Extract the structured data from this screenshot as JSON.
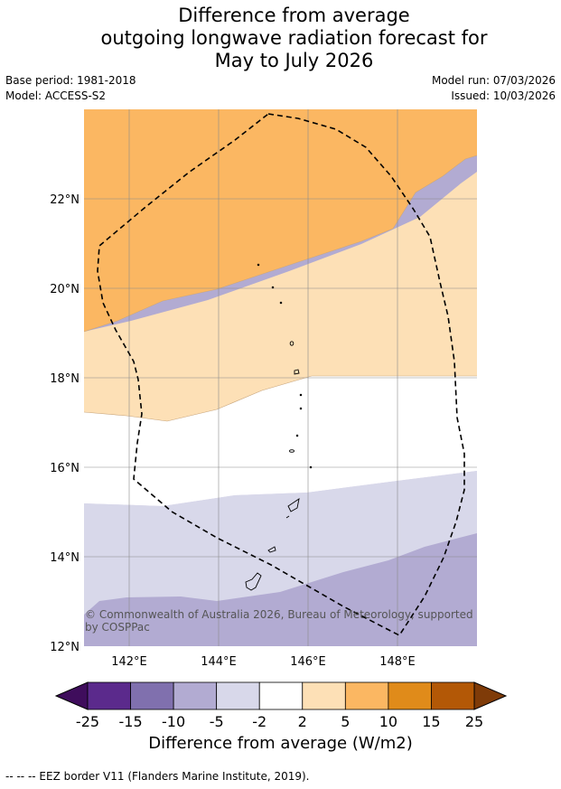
{
  "title": {
    "line1": "Difference from average",
    "line2": "outgoing longwave radiation forecast for",
    "line3": "May to July 2026"
  },
  "meta": {
    "base_period": "Base period: 1981-2018",
    "model": "Model: ACCESS-S2",
    "model_run": "Model run: 07/03/2026",
    "issued": "Issued: 10/03/2026"
  },
  "map": {
    "lat_labels": [
      "22°N",
      "20°N",
      "18°N",
      "16°N",
      "14°N",
      "12°N"
    ],
    "lon_labels": [
      "142°E",
      "144°E",
      "146°E",
      "148°E"
    ],
    "copyright": "© Commonwealth of Australia 2026, Bureau of Meteorology, supported by COSPPac"
  },
  "colorbar": {
    "ticks": [
      "-25",
      "-15",
      "-10",
      "-5",
      "-2",
      "2",
      "5",
      "10",
      "15",
      "25"
    ],
    "colors": [
      "#3f0d5c",
      "#5b2a8c",
      "#8070ae",
      "#b2abd2",
      "#d8d8ea",
      "#ffffff",
      "#fde0b6",
      "#fbb762",
      "#e08b1a",
      "#b35806",
      "#7f3b08"
    ],
    "label": "Difference from average (W/m2)"
  },
  "footer": {
    "legend_text": "--  --  -- EEZ border V11 (Flanders Marine Institute, 2019)."
  }
}
